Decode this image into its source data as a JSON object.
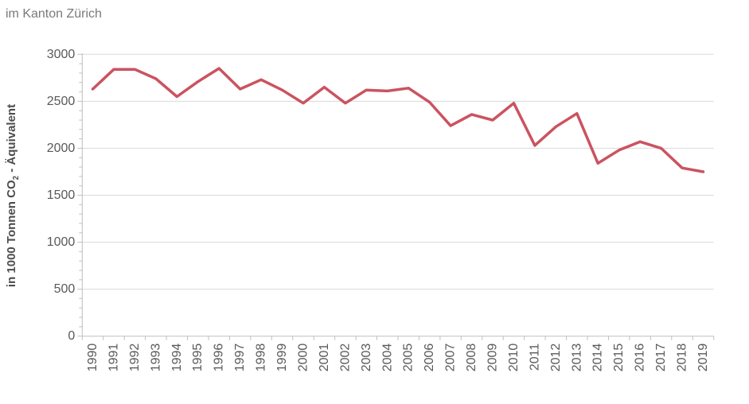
{
  "subtitle": "im Kanton Zürich",
  "y_axis_title": {
    "pre": "in 1000 Tonnen CO",
    "sub": "2",
    "post": " - Äquivalent"
  },
  "colors": {
    "line": "#cb5360",
    "grid": "#d9d9d9",
    "axis": "#bfbfbf",
    "tick_label": "#595959",
    "subtitle": "#7a7a7a",
    "y_title": "#4d4d4d"
  },
  "chart_data": {
    "type": "line",
    "title": "im Kanton Zürich",
    "ylabel": "in 1000 Tonnen CO2 - Äquivalent",
    "xlabel": "",
    "x": [
      "1990",
      "1991",
      "1992",
      "1993",
      "1994",
      "1995",
      "1996",
      "1997",
      "1998",
      "1999",
      "2000",
      "2001",
      "2002",
      "2003",
      "2004",
      "2005",
      "2006",
      "2007",
      "2008",
      "2009",
      "2010",
      "2011",
      "2012",
      "2013",
      "2014",
      "2015",
      "2016",
      "2017",
      "2018",
      "2019"
    ],
    "values": [
      2630,
      2840,
      2840,
      2740,
      2550,
      2710,
      2850,
      2630,
      2730,
      2620,
      2480,
      2650,
      2480,
      2620,
      2610,
      2640,
      2490,
      2240,
      2360,
      2300,
      2480,
      2030,
      2230,
      2370,
      1840,
      1980,
      2070,
      2000,
      1790,
      1750
    ],
    "ylim": [
      0,
      3000
    ],
    "yticks": [
      0,
      500,
      1000,
      1500,
      2000,
      2500,
      3000
    ],
    "y_minor_step": 100,
    "grid": "horizontal-major",
    "legend": false,
    "x_label_rotation": -90
  }
}
